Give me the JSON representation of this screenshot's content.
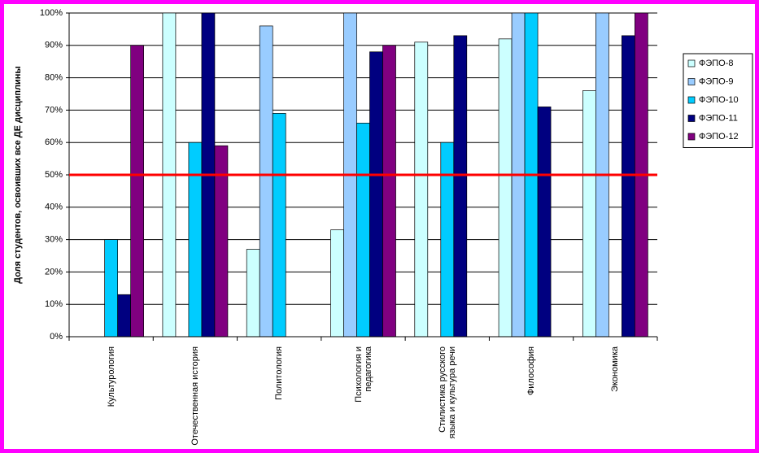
{
  "chart_data": {
    "type": "bar",
    "y_label": "Доля студентов, освоивших все ДЕ дисциплины",
    "categories": [
      "Культурология",
      "Отечественная история",
      "Политология",
      "Психология и педагогика",
      "Стилистика русского языка и культура речи",
      "Философия",
      "Экономика"
    ],
    "series": [
      {
        "name": "ФЭПО-8",
        "color": "#ccffff",
        "values": [
          0,
          100,
          27,
          33,
          91,
          92,
          76
        ]
      },
      {
        "name": "ФЭПО-9",
        "color": "#99ccff",
        "values": [
          0,
          0,
          96,
          100,
          0,
          100,
          100
        ]
      },
      {
        "name": "ФЭПО-10",
        "color": "#00ccff",
        "values": [
          30,
          60,
          69,
          66,
          60,
          100,
          0
        ]
      },
      {
        "name": "ФЭПО-11",
        "color": "#000080",
        "values": [
          13,
          100,
          0,
          88,
          93,
          71,
          93
        ]
      },
      {
        "name": "ФЭПО-12",
        "color": "#800080",
        "values": [
          90,
          59,
          0,
          90,
          0,
          0,
          100
        ]
      }
    ],
    "ylim": [
      0,
      100
    ],
    "yticks": [
      {
        "value": 0,
        "label": "0%"
      },
      {
        "value": 10,
        "label": "10%"
      },
      {
        "value": 20,
        "label": "20%"
      },
      {
        "value": 30,
        "label": "30%"
      },
      {
        "value": 40,
        "label": "40%"
      },
      {
        "value": 50,
        "label": "50%"
      },
      {
        "value": 60,
        "label": "60%"
      },
      {
        "value": 70,
        "label": "70%"
      },
      {
        "value": 80,
        "label": "80%"
      },
      {
        "value": 90,
        "label": "90%"
      },
      {
        "value": 100,
        "label": "100%"
      }
    ],
    "grid": true,
    "reference_line": {
      "value": 50,
      "color": "#ff0000"
    },
    "legend": "right"
  }
}
